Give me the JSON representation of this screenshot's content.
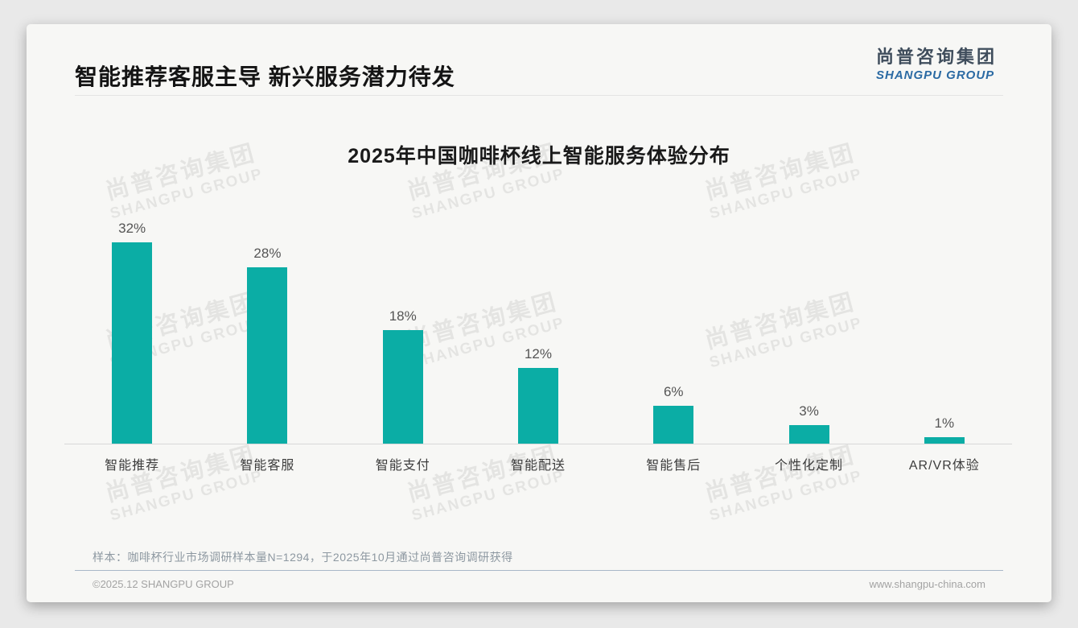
{
  "page": {
    "background": "#e9e9e9",
    "card_background": "#f7f7f5"
  },
  "header": {
    "title": "智能推荐客服主导 新兴服务潜力待发",
    "logo": {
      "cn": "尚普咨询集团",
      "en": "SHANGPU GROUP",
      "cn_color": "#3f4d5c",
      "en_color": "#2b6aa3"
    }
  },
  "watermark": {
    "cn": "尚普咨询集团",
    "en": "SHANGPU GROUP"
  },
  "chart_data": {
    "type": "bar",
    "title": "2025年中国咖啡杯线上智能服务体验分布",
    "categories": [
      "智能推荐",
      "智能客服",
      "智能支付",
      "智能配送",
      "智能售后",
      "个性化定制",
      "AR/VR体验"
    ],
    "values": [
      32,
      28,
      18,
      12,
      6,
      3,
      1
    ],
    "value_labels": [
      "32%",
      "28%",
      "18%",
      "12%",
      "6%",
      "3%",
      "1%"
    ],
    "unit": "%",
    "bar_color": "#0bada5",
    "xlabel": "",
    "ylabel": "",
    "ylim": [
      0,
      41
    ],
    "grid": false,
    "legend": false,
    "value_label_color": "#555555",
    "category_label_color": "#3d3d3d",
    "axis_line_color": "#d8d8d8"
  },
  "footnote": "样本：咖啡杯行业市场调研样本量N=1294，于2025年10月通过尚普咨询调研获得",
  "footer": {
    "left": "©2025.12 SHANGPU GROUP",
    "right": "www.shangpu-china.com"
  }
}
